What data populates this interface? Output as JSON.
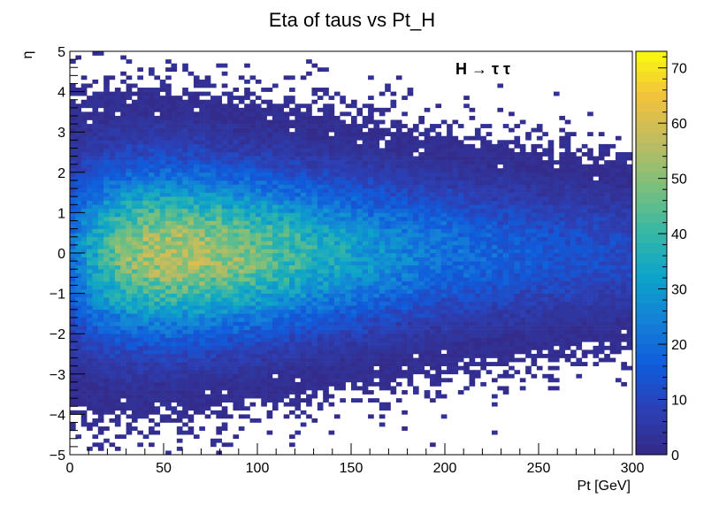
{
  "chart_data": {
    "type": "heatmap",
    "title": "Eta of taus vs Pt_H",
    "xlabel": "Pt [GeV]",
    "ylabel": "η",
    "annotation": "H → τ τ",
    "xlim": [
      0,
      300
    ],
    "ylim": [
      -5,
      5
    ],
    "zlim": [
      0,
      73
    ],
    "x_ticks": [
      "0",
      "50",
      "100",
      "150",
      "200",
      "250",
      "300"
    ],
    "y_ticks": [
      "−5",
      "−4",
      "−3",
      "−2",
      "−1",
      "0",
      "1",
      "2",
      "3",
      "4",
      "5"
    ],
    "z_ticks": [
      "0",
      "10",
      "20",
      "30",
      "40",
      "50",
      "60",
      "70"
    ],
    "bins": {
      "nx": 100,
      "ny": 100,
      "x_width": 3,
      "y_width": 0.1
    },
    "model": {
      "description_free": true,
      "peak_count": 58,
      "peak_x": 60,
      "peak_y": 0,
      "eta_sigma_at_0": 1.45,
      "eta_sigma_at_300": 0.95,
      "pt_decay_scale": 360
    },
    "grid": false,
    "colormap": "kBird",
    "palette": [
      "#352a87",
      "#2c3fb4",
      "#0f5cdd",
      "#1481d6",
      "#0ca4c9",
      "#38b8a5",
      "#7cbf7b",
      "#c0bc60",
      "#f2c23c",
      "#f9fb0e"
    ]
  }
}
